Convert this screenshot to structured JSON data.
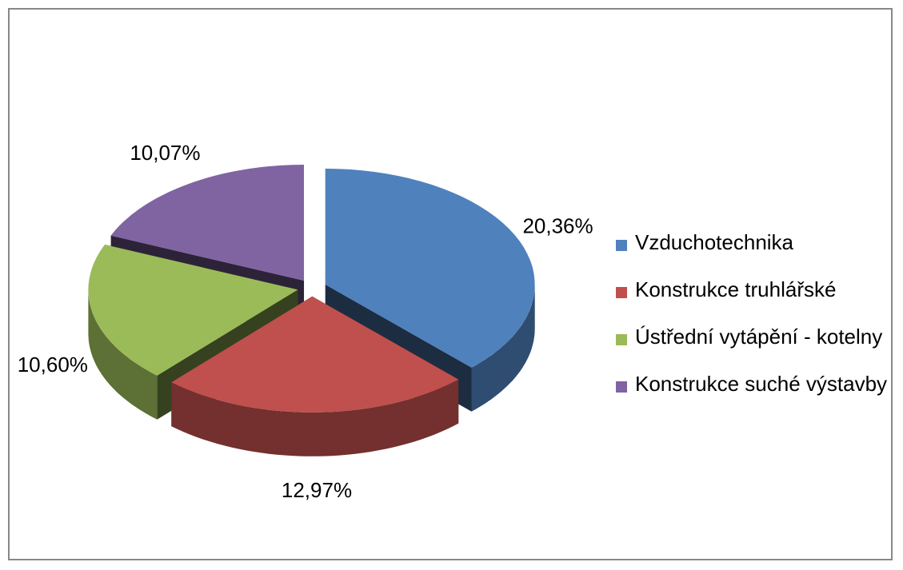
{
  "chart_data": {
    "type": "pie",
    "categories": [
      "Vzduchotechnika",
      "Konstrukce truhlářské",
      "Ústřední vytápění - kotelny",
      "Konstrukce suché výstavby"
    ],
    "values": [
      20.36,
      12.97,
      10.6,
      10.07
    ],
    "value_labels": [
      "20,36%",
      "12,97%",
      "10,60%",
      "10,07%"
    ],
    "colors": [
      "#4f81bd",
      "#c0504d",
      "#9bbb59",
      "#8064a2"
    ],
    "legend": "right"
  }
}
